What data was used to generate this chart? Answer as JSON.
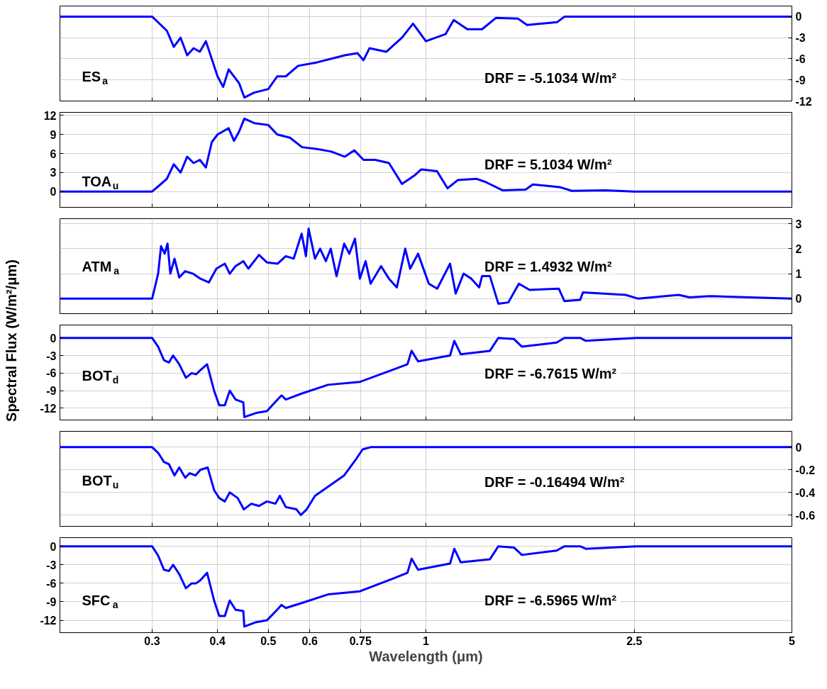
{
  "chart_data": [
    {
      "type": "line",
      "color": "#0000ff",
      "log": "x",
      "grid": true,
      "tick_labels": "y",
      "xlim": [
        0.2,
        5
      ],
      "xticks": [
        0.3,
        0.4,
        0.5,
        0.6,
        0.75,
        1,
        2.5,
        5
      ],
      "ylim": [
        -12,
        1.5
      ],
      "yticks": [
        0,
        -3,
        -6,
        -9,
        -12
      ],
      "annotations": [
        "ES$_{a}$",
        "DRF =  -5.1034 W/m²"
      ],
      "x": [
        0.2,
        0.3,
        0.32,
        0.33,
        0.34,
        0.35,
        0.36,
        0.37,
        0.38,
        0.4,
        0.41,
        0.42,
        0.44,
        0.45,
        0.47,
        0.5,
        0.52,
        0.54,
        0.57,
        0.62,
        0.7,
        0.74,
        0.76,
        0.78,
        0.84,
        0.9,
        0.945,
        1.0,
        1.09,
        1.13,
        1.2,
        1.28,
        1.36,
        1.5,
        1.56,
        1.78,
        1.84,
        2.5,
        5
      ],
      "values": [
        0,
        0,
        -2,
        -4.3,
        -3,
        -5.5,
        -4.5,
        -5,
        -3.5,
        -8.5,
        -10,
        -7.5,
        -9.5,
        -11.5,
        -10.8,
        -10.3,
        -8.5,
        -8.5,
        -7,
        -6.5,
        -5.5,
        -5.2,
        -6.2,
        -4.5,
        -5,
        -3,
        -1,
        -3.5,
        -2.5,
        -0.5,
        -1.8,
        -1.8,
        -0.2,
        -0.3,
        -1.2,
        -0.8,
        0,
        0,
        0
      ]
    },
    {
      "type": "line",
      "color": "#0000ff",
      "log": "x",
      "grid": true,
      "tick_labels": "y",
      "xlim": [
        0.2,
        5
      ],
      "xticks": [
        0.3,
        0.4,
        0.5,
        0.6,
        0.75,
        1,
        2.5,
        5
      ],
      "ylim": [
        -2.5,
        12.5
      ],
      "yticks": [
        0,
        3,
        6,
        9,
        12
      ],
      "annotations": [
        "TOA$_{u}$",
        "DRF =  5.1034 W/m²"
      ],
      "x": [
        0.2,
        0.3,
        0.31,
        0.32,
        0.33,
        0.34,
        0.35,
        0.36,
        0.37,
        0.38,
        0.39,
        0.4,
        0.42,
        0.43,
        0.44,
        0.45,
        0.47,
        0.5,
        0.52,
        0.55,
        0.58,
        0.62,
        0.66,
        0.7,
        0.73,
        0.76,
        0.8,
        0.85,
        0.9,
        0.95,
        0.98,
        1.05,
        1.1,
        1.15,
        1.25,
        1.3,
        1.4,
        1.55,
        1.6,
        1.8,
        1.9,
        2.2,
        2.5,
        5
      ],
      "values": [
        0,
        0,
        1,
        2,
        4.3,
        3,
        5.5,
        4.5,
        5,
        3.8,
        7.8,
        9,
        10,
        8,
        9.5,
        11.5,
        10.8,
        10.5,
        9,
        8.5,
        7,
        6.7,
        6.3,
        5.5,
        6.5,
        5,
        5,
        4.5,
        1.2,
        2.5,
        3.5,
        3.2,
        0.5,
        1.8,
        2.0,
        1.5,
        0.2,
        0.3,
        1.1,
        0.7,
        0.1,
        0.2,
        0,
        0
      ]
    },
    {
      "type": "line",
      "color": "#0000ff",
      "log": "x",
      "grid": true,
      "tick_labels": "y",
      "xlim": [
        0.2,
        5
      ],
      "xticks": [
        0.3,
        0.4,
        0.5,
        0.6,
        0.75,
        1,
        2.5,
        5
      ],
      "ylim": [
        -0.6,
        3.2
      ],
      "yticks": [
        0,
        1,
        2,
        3
      ],
      "annotations": [
        "ATM$_{a}$",
        "DRF =  1.4932 W/m²"
      ],
      "x": [
        0.2,
        0.3,
        0.308,
        0.312,
        0.317,
        0.321,
        0.325,
        0.331,
        0.338,
        0.347,
        0.359,
        0.371,
        0.385,
        0.398,
        0.413,
        0.422,
        0.433,
        0.448,
        0.458,
        0.474,
        0.48,
        0.497,
        0.521,
        0.54,
        0.559,
        0.579,
        0.59,
        0.597,
        0.614,
        0.628,
        0.644,
        0.658,
        0.675,
        0.698,
        0.714,
        0.732,
        0.748,
        0.767,
        0.784,
        0.821,
        0.85,
        0.88,
        0.913,
        0.933,
        0.966,
        1.013,
        1.051,
        1.112,
        1.14,
        1.18,
        1.221,
        1.264,
        1.28,
        1.325,
        1.375,
        1.437,
        1.505,
        1.578,
        1.794,
        1.839,
        1.97,
        1.995,
        2.406,
        2.545,
        3.04,
        3.187,
        3.49,
        5
      ],
      "values": [
        0,
        0,
        1.0,
        2.1,
        1.8,
        2.2,
        1.0,
        1.6,
        0.85,
        1.1,
        1.0,
        0.8,
        0.65,
        1.2,
        1.4,
        1.0,
        1.3,
        1.5,
        1.2,
        1.6,
        1.75,
        1.45,
        1.4,
        1.7,
        1.6,
        2.6,
        1.7,
        2.8,
        1.6,
        2.0,
        1.5,
        2.0,
        0.9,
        2.2,
        1.8,
        2.4,
        0.8,
        1.5,
        0.6,
        1.3,
        0.8,
        0.45,
        2.0,
        1.2,
        1.8,
        0.6,
        0.4,
        1.4,
        0.2,
        1.0,
        0.8,
        0.45,
        0.9,
        0.9,
        -0.2,
        -0.15,
        0.6,
        0.35,
        0.4,
        -0.1,
        -0.05,
        0.25,
        0.15,
        0,
        0.15,
        0.05,
        0.1,
        0
      ]
    },
    {
      "type": "line",
      "color": "#0000ff",
      "log": "x",
      "grid": true,
      "tick_labels": "y",
      "xlim": [
        0.2,
        5
      ],
      "xticks": [
        0.3,
        0.4,
        0.5,
        0.6,
        0.75,
        1,
        2.5,
        5
      ],
      "ylim": [
        -14,
        2.2
      ],
      "yticks": [
        0,
        -3,
        -6,
        -9,
        -12
      ],
      "ylabel": "Spectral Flux (W/m²/μm)",
      "annotations": [
        "BOT$_{d}$",
        "DRF =  -6.7615 W/m²"
      ],
      "x": [
        0.2,
        0.3,
        0.308,
        0.316,
        0.323,
        0.329,
        0.338,
        0.348,
        0.357,
        0.364,
        0.371,
        0.382,
        0.394,
        0.403,
        0.413,
        0.422,
        0.433,
        0.448,
        0.45,
        0.474,
        0.497,
        0.521,
        0.53,
        0.54,
        0.579,
        0.65,
        0.748,
        0.861,
        0.922,
        0.939,
        0.966,
        1.112,
        1.133,
        1.166,
        1.325,
        1.375,
        1.473,
        1.525,
        1.777,
        1.839,
        1.97,
        2.02,
        2.52,
        5
      ],
      "values": [
        0,
        0,
        -1.5,
        -3.8,
        -4.2,
        -3,
        -4.5,
        -6.8,
        -6,
        -6.2,
        -5.5,
        -4.5,
        -9,
        -11.5,
        -11.5,
        -9,
        -10.5,
        -11,
        -13.5,
        -12.8,
        -12.5,
        -10.5,
        -9.8,
        -10.5,
        -9.5,
        -8,
        -7.5,
        -5.5,
        -4.5,
        -2.2,
        -4,
        -3,
        -0.5,
        -2.8,
        -2.2,
        0,
        -0.2,
        -1.5,
        -0.8,
        0,
        0,
        -0.5,
        0,
        0
      ]
    },
    {
      "type": "line",
      "color": "#0000ff",
      "log": "x",
      "grid": true,
      "tick_labels": "y",
      "xlim": [
        0.2,
        5
      ],
      "xticks": [
        0.3,
        0.4,
        0.5,
        0.6,
        0.75,
        1,
        2.5,
        5
      ],
      "ylim": [
        -0.7,
        0.14
      ],
      "yticks": [
        0,
        -0.2,
        -0.4,
        -0.6
      ],
      "annotations": [
        "BOT$_{u}$",
        "DRF =  -0.16494 W/m²"
      ],
      "x": [
        0.2,
        0.3,
        0.308,
        0.316,
        0.323,
        0.331,
        0.338,
        0.347,
        0.354,
        0.363,
        0.371,
        0.383,
        0.394,
        0.403,
        0.413,
        0.422,
        0.437,
        0.449,
        0.464,
        0.48,
        0.497,
        0.516,
        0.526,
        0.54,
        0.566,
        0.577,
        0.592,
        0.614,
        0.65,
        0.698,
        0.732,
        0.757,
        0.784,
        5
      ],
      "values": [
        0,
        0,
        -0.05,
        -0.13,
        -0.15,
        -0.25,
        -0.18,
        -0.27,
        -0.23,
        -0.25,
        -0.2,
        -0.18,
        -0.38,
        -0.45,
        -0.48,
        -0.4,
        -0.45,
        -0.55,
        -0.5,
        -0.52,
        -0.48,
        -0.5,
        -0.43,
        -0.53,
        -0.55,
        -0.6,
        -0.55,
        -0.43,
        -0.35,
        -0.25,
        -0.12,
        -0.02,
        0,
        0
      ]
    },
    {
      "type": "line",
      "color": "#0000ff",
      "log": "x",
      "grid": true,
      "xlim": [
        0.2,
        5
      ],
      "xticks": [
        0.3,
        0.4,
        0.5,
        0.6,
        0.75,
        1,
        2.5,
        5
      ],
      "ylim": [
        -14,
        1.4
      ],
      "yticks": [
        0,
        -3,
        -6,
        -9,
        -12
      ],
      "xlabel": "Wavelength (μm)",
      "annotations": [
        "SFC$_{a}$",
        "DRF =  -6.5965 W/m²"
      ],
      "x": [
        0.2,
        0.3,
        0.308,
        0.316,
        0.323,
        0.329,
        0.338,
        0.348,
        0.357,
        0.364,
        0.371,
        0.382,
        0.394,
        0.403,
        0.413,
        0.422,
        0.433,
        0.448,
        0.45,
        0.474,
        0.497,
        0.521,
        0.53,
        0.54,
        0.579,
        0.65,
        0.748,
        0.861,
        0.922,
        0.939,
        0.966,
        1.112,
        1.133,
        1.166,
        1.325,
        1.375,
        1.473,
        1.525,
        1.777,
        1.839,
        1.97,
        2.02,
        2.52,
        5
      ],
      "values": [
        0,
        0,
        -1.5,
        -3.8,
        -4,
        -3,
        -4.5,
        -6.8,
        -6,
        -6,
        -5.5,
        -4.3,
        -8.8,
        -11.3,
        -11.3,
        -8.8,
        -10.3,
        -10.5,
        -13,
        -12.3,
        -12,
        -10.2,
        -9.5,
        -10,
        -9.2,
        -7.8,
        -7.3,
        -5.3,
        -4.3,
        -2.0,
        -3.8,
        -2.8,
        -0.4,
        -2.6,
        -2.1,
        0,
        -0.2,
        -1.4,
        -0.7,
        0,
        0,
        -0.4,
        0,
        0
      ]
    }
  ]
}
